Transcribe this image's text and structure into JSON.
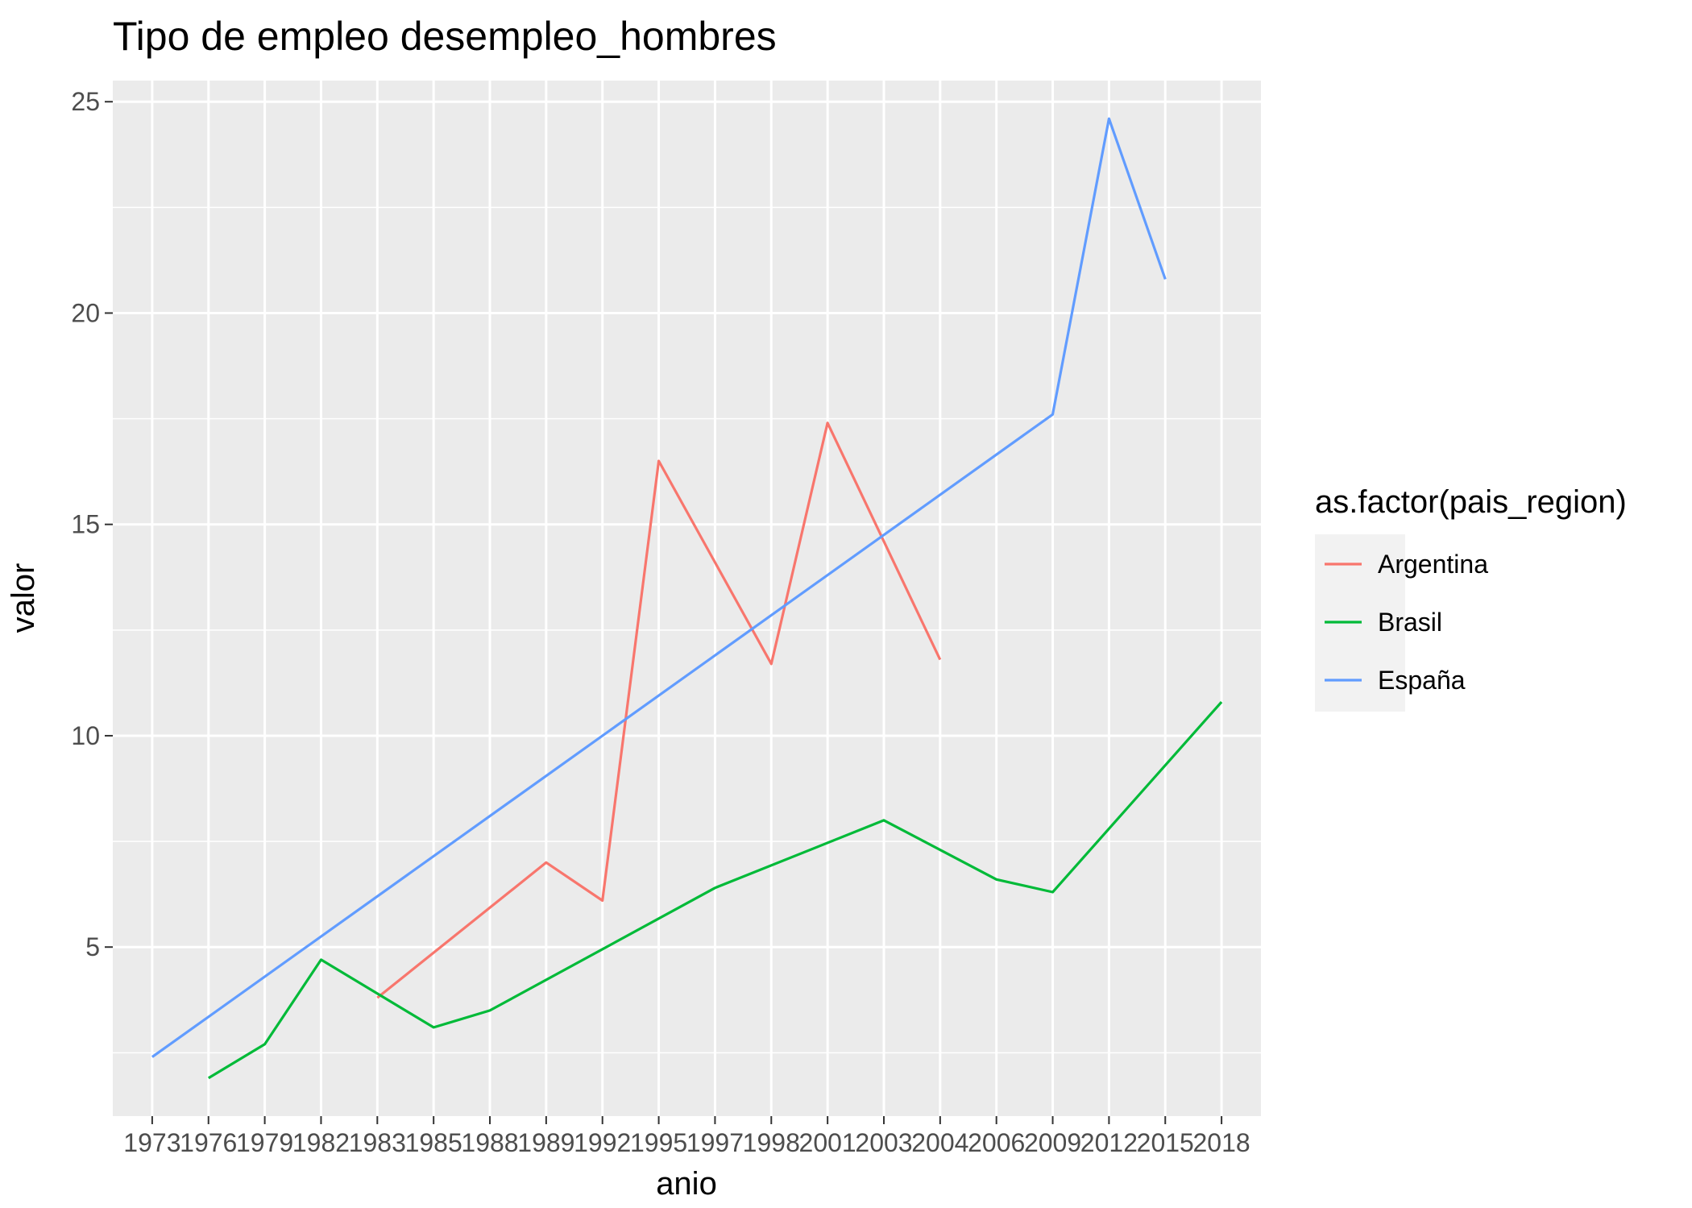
{
  "chart_data": {
    "type": "line",
    "title": "Tipo de empleo desempleo_hombres",
    "xlabel": "anio",
    "ylabel": "valor",
    "x_scale": "categorical",
    "categories": [
      "1973",
      "1976",
      "1979",
      "1982",
      "1983",
      "1985",
      "1988",
      "1989",
      "1992",
      "1995",
      "1997",
      "1998",
      "2001",
      "2003",
      "2004",
      "2006",
      "2009",
      "2012",
      "2015",
      "2018"
    ],
    "ylim": [
      1.0,
      25.5
    ],
    "yticks": [
      5,
      10,
      15,
      20,
      25
    ],
    "grid": true,
    "legend": {
      "title": "as.factor(pais_region)",
      "position": "right"
    },
    "series": [
      {
        "name": "Argentina",
        "color": "#F8766D",
        "points": [
          {
            "x": "1983",
            "y": 3.8
          },
          {
            "x": "1989",
            "y": 7.0
          },
          {
            "x": "1992",
            "y": 6.1
          },
          {
            "x": "1995",
            "y": 16.5
          },
          {
            "x": "1998",
            "y": 11.7
          },
          {
            "x": "2001",
            "y": 17.4
          },
          {
            "x": "2004",
            "y": 11.8
          }
        ]
      },
      {
        "name": "Brasil",
        "color": "#00BA38",
        "points": [
          {
            "x": "1976",
            "y": 1.9
          },
          {
            "x": "1979",
            "y": 2.7
          },
          {
            "x": "1982",
            "y": 4.7
          },
          {
            "x": "1983",
            "y": 3.9
          },
          {
            "x": "1985",
            "y": 3.1
          },
          {
            "x": "1988",
            "y": 3.5
          },
          {
            "x": "1997",
            "y": 6.4
          },
          {
            "x": "2003",
            "y": 8.0
          },
          {
            "x": "2006",
            "y": 6.6
          },
          {
            "x": "2009",
            "y": 6.3
          },
          {
            "x": "2018",
            "y": 10.8
          }
        ]
      },
      {
        "name": "España",
        "color": "#619CFF",
        "points": [
          {
            "x": "1973",
            "y": 2.4
          },
          {
            "x": "2009",
            "y": 17.6
          },
          {
            "x": "2012",
            "y": 24.6
          },
          {
            "x": "2015",
            "y": 20.8
          }
        ]
      }
    ]
  }
}
